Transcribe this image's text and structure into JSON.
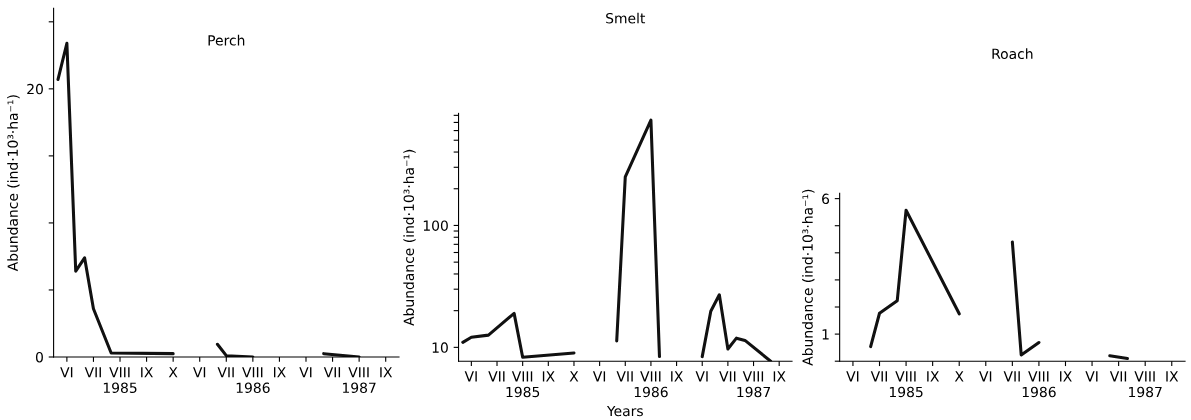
{
  "chart_data": [
    {
      "type": "line",
      "title": "Perch",
      "ylabel": "Abundance (ind·10³·ha⁻¹)",
      "categories": [
        null,
        "VI",
        null,
        null,
        "VII",
        null,
        null,
        "VIII\n1985",
        null,
        null,
        "IX",
        null,
        null,
        "X",
        null,
        null,
        "VI",
        null,
        null,
        "VII",
        null,
        null,
        "VIII\n1986",
        null,
        null,
        "IX",
        null,
        null,
        "VI",
        null,
        null,
        "VII",
        null,
        null,
        "VIII\n1987",
        null,
        null,
        "IX",
        null
      ],
      "series": [
        {
          "color": "#111111",
          "values": [
            20.7,
            23.4,
            6.4,
            7.4,
            3.6,
            null,
            0.3,
            null,
            null,
            null,
            null,
            null,
            null,
            0.25,
            null,
            null,
            null,
            null,
            null,
            null,
            null,
            null,
            null,
            null,
            null,
            null,
            null,
            null,
            null,
            null,
            null,
            null,
            null,
            null,
            null,
            null,
            null,
            null,
            null
          ]
        },
        {
          "color": "#111111",
          "values": [
            null,
            null,
            null,
            null,
            null,
            null,
            null,
            null,
            null,
            null,
            null,
            null,
            null,
            null,
            null,
            null,
            null,
            null,
            0.95,
            0.1,
            null,
            null,
            0,
            null,
            null,
            null,
            null,
            null,
            null,
            null,
            null,
            null,
            null,
            null,
            null,
            null,
            null,
            null,
            null
          ]
        },
        {
          "color": "#111111",
          "values": [
            null,
            null,
            null,
            null,
            null,
            null,
            null,
            null,
            null,
            null,
            null,
            null,
            null,
            null,
            null,
            null,
            null,
            null,
            null,
            null,
            null,
            null,
            null,
            null,
            null,
            null,
            null,
            null,
            null,
            null,
            0.25,
            null,
            null,
            null,
            0,
            null,
            null,
            null,
            null
          ]
        }
      ],
      "ylim": [
        0,
        26
      ],
      "yticks": [
        0,
        {
          "value": 5,
          "label": null
        },
        {
          "value": 10,
          "label": null
        },
        {
          "value": 15,
          "label": null
        },
        20,
        {
          "value": 25,
          "label": null
        }
      ]
    },
    {
      "type": "line",
      "title": "Smelt",
      "ylabel": "Abundance (ind·10³·ha⁻¹)",
      "xlabel": "Years",
      "log": true,
      "categories": [
        null,
        "VI",
        null,
        null,
        "VII",
        null,
        null,
        "VIII\n1985",
        null,
        null,
        "IX",
        null,
        null,
        "X",
        null,
        null,
        "VI",
        null,
        null,
        "VII",
        null,
        null,
        "VIII\n1986",
        null,
        null,
        "IX",
        null,
        null,
        "VI",
        null,
        null,
        "VII",
        null,
        null,
        "VIII\n1987",
        null,
        null,
        "IX",
        null
      ],
      "series": [
        {
          "color": "#111111",
          "values": [
            11,
            12.1,
            null,
            12.6,
            null,
            null,
            19,
            8.3,
            null,
            null,
            null,
            null,
            null,
            9,
            null,
            null,
            null,
            null,
            null,
            null,
            null,
            null,
            null,
            null,
            null,
            null,
            null,
            null,
            null,
            null,
            null,
            null,
            null,
            null,
            null,
            null,
            null,
            null,
            null
          ]
        },
        {
          "color": "#111111",
          "values": [
            null,
            null,
            null,
            null,
            null,
            null,
            null,
            null,
            null,
            null,
            null,
            null,
            null,
            null,
            null,
            null,
            null,
            null,
            11.3,
            250,
            null,
            null,
            730,
            8.4,
            null,
            null,
            null,
            null,
            null,
            null,
            null,
            null,
            null,
            null,
            null,
            null,
            null,
            null,
            null
          ]
        },
        {
          "color": "#111111",
          "values": [
            null,
            null,
            null,
            null,
            null,
            null,
            null,
            null,
            null,
            null,
            null,
            null,
            null,
            null,
            null,
            null,
            null,
            null,
            null,
            null,
            null,
            null,
            null,
            null,
            null,
            null,
            null,
            null,
            8.4,
            19.8,
            27,
            9.7,
            11.9,
            11.4,
            null,
            null,
            7.7,
            null,
            null
          ]
        }
      ],
      "ylim": [
        7.7,
        830
      ],
      "yticks": [
        10,
        {
          "value": 20,
          "label": null
        },
        {
          "value": 30,
          "label": null
        },
        {
          "value": 40,
          "label": null
        },
        {
          "value": 50,
          "label": null
        },
        {
          "value": 60,
          "label": null
        },
        {
          "value": 70,
          "label": null
        },
        {
          "value": 80,
          "label": null
        },
        {
          "value": 90,
          "label": null
        },
        100,
        {
          "value": 200,
          "label": null
        },
        {
          "value": 300,
          "label": null
        },
        {
          "value": 400,
          "label": null
        },
        {
          "value": 500,
          "label": null
        },
        {
          "value": 600,
          "label": null
        },
        {
          "value": 700,
          "label": null
        },
        {
          "value": 800,
          "label": null
        }
      ]
    },
    {
      "type": "line",
      "title": "Roach",
      "ylabel": "Abundance (ind·10³·ha⁻¹)",
      "categories": [
        null,
        "VI",
        null,
        null,
        "VII",
        null,
        null,
        "VIII\n1985",
        null,
        null,
        "IX",
        null,
        null,
        "X",
        null,
        null,
        "VI",
        null,
        null,
        "VII",
        null,
        null,
        "VIII\n1986",
        null,
        null,
        "IX",
        null,
        null,
        "VI",
        null,
        null,
        "VII",
        null,
        null,
        "VIII\n1987",
        null,
        null,
        "IX",
        null
      ],
      "series": [
        {
          "color": "#111111",
          "values": [
            null,
            null,
            null,
            0.54,
            1.77,
            null,
            2.23,
            5.57,
            null,
            null,
            null,
            null,
            null,
            1.75,
            null,
            null,
            null,
            null,
            null,
            null,
            null,
            null,
            null,
            null,
            null,
            null,
            null,
            null,
            null,
            null,
            null,
            null,
            null,
            null,
            null,
            null,
            null,
            null,
            null
          ]
        },
        {
          "color": "#111111",
          "values": [
            null,
            null,
            null,
            null,
            null,
            null,
            null,
            null,
            null,
            null,
            null,
            null,
            null,
            null,
            null,
            null,
            null,
            null,
            null,
            4.4,
            0.23,
            null,
            0.69,
            null,
            null,
            null,
            null,
            null,
            null,
            null,
            null,
            null,
            null,
            null,
            null,
            null,
            null,
            null,
            null
          ]
        },
        {
          "color": "#111111",
          "values": [
            null,
            null,
            null,
            null,
            null,
            null,
            null,
            null,
            null,
            null,
            null,
            null,
            null,
            null,
            null,
            null,
            null,
            null,
            null,
            null,
            null,
            null,
            null,
            null,
            null,
            null,
            null,
            null,
            null,
            null,
            0.2,
            null,
            0.1,
            null,
            null,
            null,
            null,
            null,
            null
          ]
        }
      ],
      "ylim": [
        0,
        6.2
      ],
      "yticks": [
        {
          "value": 0,
          "label": null
        },
        1,
        {
          "value": 2,
          "label": null
        },
        {
          "value": 3,
          "label": null
        },
        {
          "value": 4,
          "label": null
        },
        {
          "value": 5,
          "label": null
        },
        6
      ]
    }
  ]
}
